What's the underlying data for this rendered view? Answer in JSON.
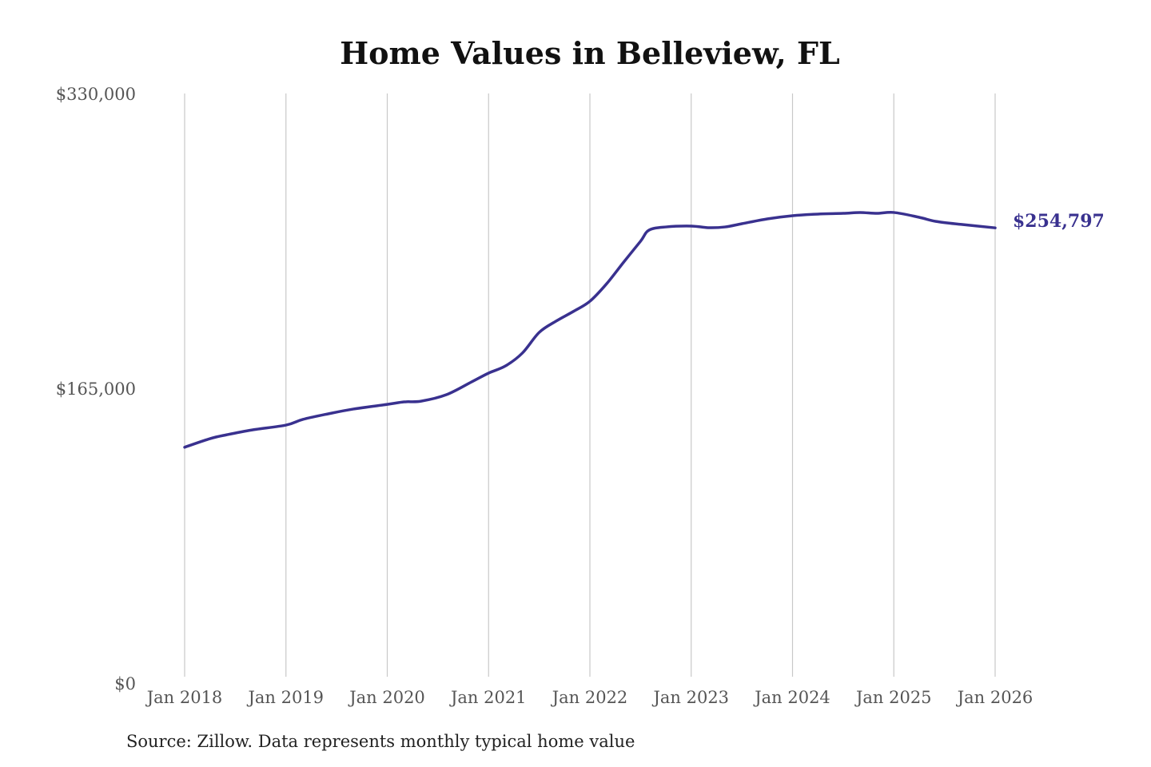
{
  "chart_data": {
    "type": "line",
    "title": "Home Values in Belleview, FL",
    "source": "Source: Zillow. Data represents monthly typical home value",
    "xlabel": "",
    "ylabel": "",
    "ylim": [
      0,
      330000
    ],
    "xlim": [
      "2018-01",
      "2026-01"
    ],
    "y_ticks": [
      0,
      165000,
      330000
    ],
    "y_tick_labels": [
      "$0",
      "$165,000",
      "$330,000"
    ],
    "x_ticks": [
      "2018-01",
      "2019-01",
      "2020-01",
      "2021-01",
      "2022-01",
      "2023-01",
      "2024-01",
      "2025-01",
      "2026-01"
    ],
    "x_tick_labels": [
      "Jan 2018",
      "Jan 2019",
      "Jan 2020",
      "Jan 2021",
      "Jan 2022",
      "Jan 2023",
      "Jan 2024",
      "Jan 2025",
      "Jan 2026"
    ],
    "grid": "vertical",
    "line_color": "#39318f",
    "end_label": "$254,797",
    "series": [
      {
        "x": [
          "2018-01",
          "2018-04",
          "2018-06",
          "2018-09",
          "2019-01",
          "2019-03",
          "2019-06",
          "2019-09",
          "2020-01",
          "2020-03",
          "2020-05",
          "2020-08",
          "2020-11",
          "2021-01",
          "2021-03",
          "2021-05",
          "2021-07",
          "2021-09",
          "2021-11",
          "2022-01",
          "2022-03",
          "2022-05",
          "2022-07",
          "2022-08",
          "2022-10",
          "2023-01",
          "2023-03",
          "2023-05",
          "2023-07",
          "2023-10",
          "2024-01",
          "2024-04",
          "2024-07",
          "2024-09",
          "2024-11",
          "2025-01",
          "2025-04",
          "2025-06",
          "2025-09",
          "2026-01"
        ],
        "values": [
          132000,
          136800,
          139000,
          141700,
          144400,
          147600,
          150700,
          153400,
          156000,
          157400,
          157800,
          161400,
          168600,
          173500,
          177500,
          184700,
          196300,
          202600,
          207900,
          213700,
          223600,
          235600,
          247300,
          253500,
          255300,
          255800,
          254900,
          255300,
          257100,
          259800,
          261600,
          262500,
          262900,
          263400,
          262900,
          263400,
          260700,
          258400,
          256700,
          254797
        ]
      }
    ]
  }
}
